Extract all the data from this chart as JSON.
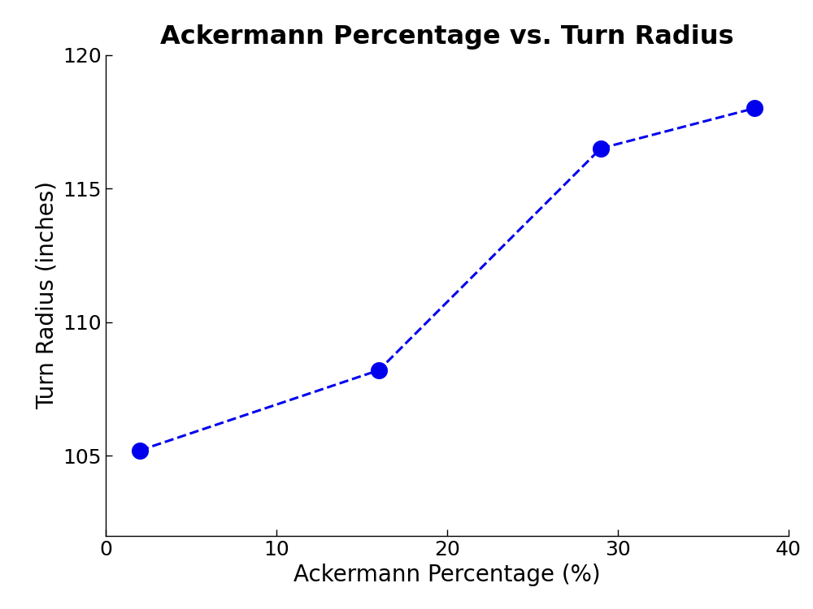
{
  "x": [
    2,
    16,
    29,
    38
  ],
  "y": [
    105.2,
    108.2,
    116.5,
    118.0
  ],
  "title": "Ackermann Percentage vs. Turn Radius",
  "xlabel": "Ackermann Percentage (%)",
  "ylabel": "Turn Radius (inches)",
  "xlim": [
    0,
    40
  ],
  "ylim": [
    102,
    120
  ],
  "xticks": [
    0,
    10,
    20,
    30,
    40
  ],
  "yticks": [
    105,
    110,
    115,
    120
  ],
  "line_color": "#0000EE",
  "marker_color": "#0000EE",
  "marker_size": 200,
  "line_width": 2.2,
  "title_fontsize": 23,
  "label_fontsize": 20,
  "tick_fontsize": 18,
  "background_color": "#ffffff"
}
